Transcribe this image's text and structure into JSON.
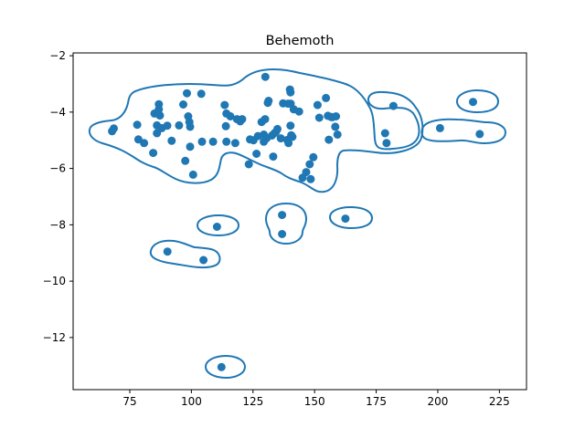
{
  "chart_data": {
    "type": "scatter",
    "title": "Behemoth",
    "xlabel": "",
    "ylabel": "",
    "xlim": [
      52,
      236
    ],
    "ylim": [
      -13.85,
      -1.9
    ],
    "xticks": [
      75,
      100,
      125,
      150,
      175,
      200,
      225
    ],
    "yticks": [
      -12,
      -10,
      -8,
      -6,
      -4,
      -2
    ],
    "xtick_labels": [
      "75",
      "100",
      "125",
      "150",
      "175",
      "200",
      "225"
    ],
    "ytick_labels": [
      "−12",
      "−10",
      "−8",
      "−6",
      "−4",
      "−2"
    ],
    "grid": false,
    "color": "#1f77b4",
    "points": [
      [
        67.8,
        -4.68
      ],
      [
        68.5,
        -4.58
      ],
      [
        78.0,
        -4.45
      ],
      [
        78.5,
        -4.97
      ],
      [
        80.8,
        -5.1
      ],
      [
        84.5,
        -5.45
      ],
      [
        85.0,
        -4.05
      ],
      [
        86.0,
        -4.47
      ],
      [
        86.0,
        -4.75
      ],
      [
        86.8,
        -3.72
      ],
      [
        86.8,
        -3.9
      ],
      [
        87.2,
        -4.12
      ],
      [
        88.0,
        -4.57
      ],
      [
        90.2,
        -4.48
      ],
      [
        92.0,
        -5.02
      ],
      [
        95.0,
        -4.47
      ],
      [
        96.7,
        -3.73
      ],
      [
        97.5,
        -5.73
      ],
      [
        98.2,
        -3.33
      ],
      [
        98.7,
        -4.15
      ],
      [
        99.2,
        -4.35
      ],
      [
        99.5,
        -5.23
      ],
      [
        99.5,
        -4.52
      ],
      [
        100.7,
        -6.22
      ],
      [
        104.0,
        -3.35
      ],
      [
        104.3,
        -5.05
      ],
      [
        108.8,
        -5.05
      ],
      [
        113.5,
        -3.75
      ],
      [
        114.0,
        -4.5
      ],
      [
        114.2,
        -4.05
      ],
      [
        114.2,
        -5.05
      ],
      [
        115.8,
        -4.15
      ],
      [
        117.8,
        -5.1
      ],
      [
        118.5,
        -4.25
      ],
      [
        119.8,
        -4.33
      ],
      [
        120.6,
        -4.25
      ],
      [
        123.3,
        -5.85
      ],
      [
        123.8,
        -4.97
      ],
      [
        125.2,
        -5.0
      ],
      [
        126.4,
        -5.48
      ],
      [
        127.0,
        -4.85
      ],
      [
        128.5,
        -4.35
      ],
      [
        129.4,
        -5.05
      ],
      [
        129.4,
        -4.8
      ],
      [
        129.9,
        -4.25
      ],
      [
        130.0,
        -2.75
      ],
      [
        130.5,
        -4.93
      ],
      [
        131.0,
        -3.67
      ],
      [
        131.3,
        -3.6
      ],
      [
        132.7,
        -4.83
      ],
      [
        133.2,
        -5.58
      ],
      [
        133.7,
        -4.75
      ],
      [
        134.3,
        -4.7
      ],
      [
        134.9,
        -4.6
      ],
      [
        136.3,
        -4.93
      ],
      [
        137.2,
        -3.69
      ],
      [
        138.9,
        -4.99
      ],
      [
        139.2,
        -3.7
      ],
      [
        139.4,
        -5.1
      ],
      [
        140.0,
        -3.2
      ],
      [
        140.2,
        -3.3
      ],
      [
        140.2,
        -4.48
      ],
      [
        140.3,
        -3.7
      ],
      [
        140.5,
        -4.82
      ],
      [
        141.0,
        -4.88
      ],
      [
        141.5,
        -3.9
      ],
      [
        143.7,
        -3.98
      ],
      [
        145.1,
        -6.33
      ],
      [
        146.6,
        -6.13
      ],
      [
        148.0,
        -5.85
      ],
      [
        148.4,
        -6.38
      ],
      [
        149.5,
        -5.6
      ],
      [
        151.2,
        -3.75
      ],
      [
        151.9,
        -4.2
      ],
      [
        154.6,
        -3.5
      ],
      [
        155.4,
        -4.13
      ],
      [
        155.8,
        -4.98
      ],
      [
        156.6,
        -4.17
      ],
      [
        157.2,
        -4.18
      ],
      [
        158.4,
        -4.52
      ],
      [
        158.7,
        -4.15
      ],
      [
        159.3,
        -4.8
      ],
      [
        178.6,
        -4.75
      ],
      [
        179.2,
        -5.1
      ],
      [
        182.0,
        -3.78
      ],
      [
        200.9,
        -4.57
      ],
      [
        214.3,
        -3.64
      ],
      [
        217.0,
        -4.78
      ],
      [
        90.3,
        -8.95
      ],
      [
        104.9,
        -9.25
      ],
      [
        110.4,
        -8.07
      ],
      [
        136.8,
        -7.65
      ],
      [
        136.8,
        -8.33
      ],
      [
        162.5,
        -7.78
      ],
      [
        112.2,
        -13.05
      ]
    ]
  }
}
